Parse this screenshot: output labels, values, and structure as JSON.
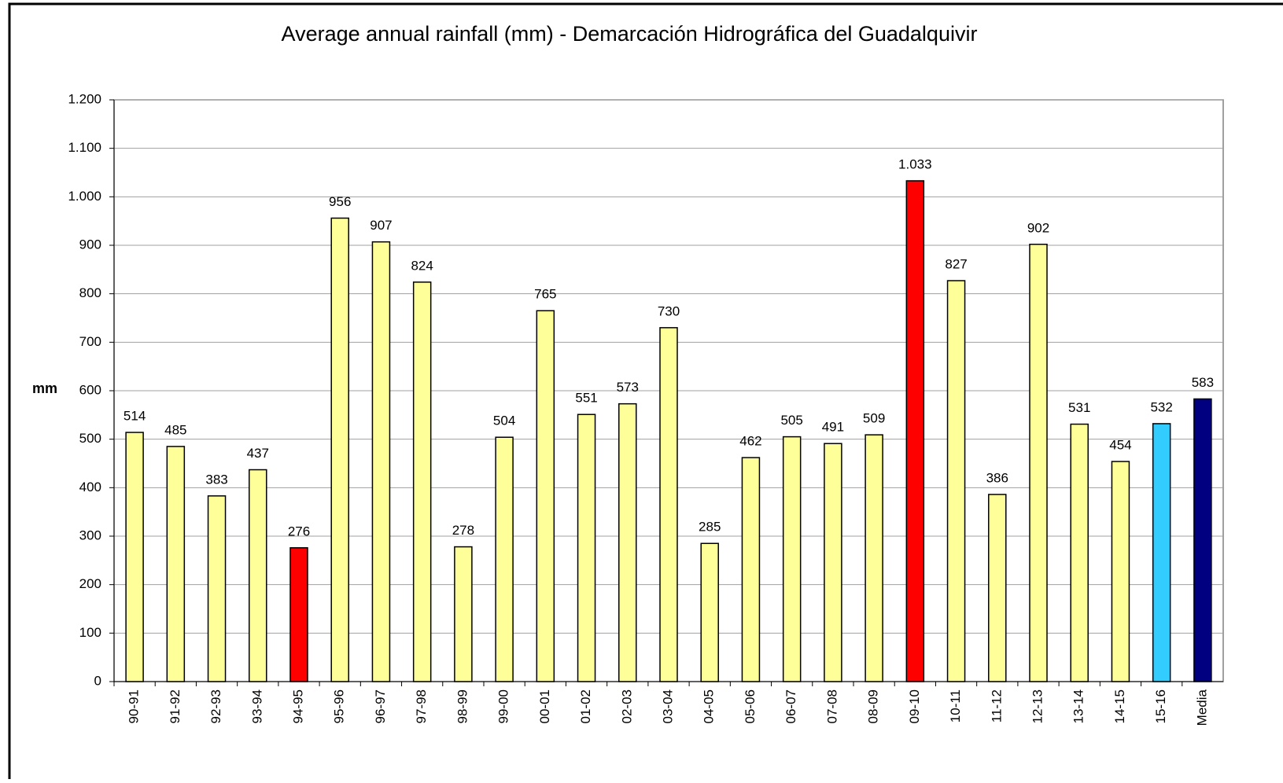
{
  "chart_data": {
    "type": "bar",
    "title": "Average annual rainfall (mm) - Demarcación Hidrográfica del Guadalquivir",
    "ylabel": "mm",
    "categories": [
      "90-91",
      "91-92",
      "92-93",
      "93-94",
      "94-95",
      "95-96",
      "96-97",
      "97-98",
      "98-99",
      "99-00",
      "00-01",
      "01-02",
      "02-03",
      "03-04",
      "04-05",
      "05-06",
      "06-07",
      "07-08",
      "08-09",
      "09-10",
      "10-11",
      "11-12",
      "12-13",
      "13-14",
      "14-15",
      "15-16",
      "Media"
    ],
    "values": [
      514,
      485,
      383,
      437,
      276,
      956,
      907,
      824,
      278,
      504,
      765,
      551,
      573,
      730,
      285,
      462,
      505,
      491,
      509,
      1033,
      827,
      386,
      902,
      531,
      454,
      532,
      583
    ],
    "value_labels": [
      "514",
      "485",
      "383",
      "437",
      "276",
      "956",
      "907",
      "824",
      "278",
      "504",
      "765",
      "551",
      "573",
      "730",
      "285",
      "462",
      "505",
      "491",
      "509",
      "1.033",
      "827",
      "386",
      "902",
      "531",
      "454",
      "532",
      "583"
    ],
    "colors": [
      "#ffff99",
      "#ffff99",
      "#ffff99",
      "#ffff99",
      "#ff0000",
      "#ffff99",
      "#ffff99",
      "#ffff99",
      "#ffff99",
      "#ffff99",
      "#ffff99",
      "#ffff99",
      "#ffff99",
      "#ffff99",
      "#ffff99",
      "#ffff99",
      "#ffff99",
      "#ffff99",
      "#ffff99",
      "#ff0000",
      "#ffff99",
      "#ffff99",
      "#ffff99",
      "#ffff99",
      "#ffff99",
      "#33ccff",
      "#000080"
    ],
    "ylim": [
      0,
      1200
    ],
    "yticks": [
      0,
      100,
      200,
      300,
      400,
      500,
      600,
      700,
      800,
      900,
      {
        "value": 1000,
        "label": "1.000"
      },
      {
        "value": 1100,
        "label": "1.100"
      },
      {
        "value": 1200,
        "label": "1.200"
      }
    ],
    "grid": true
  }
}
